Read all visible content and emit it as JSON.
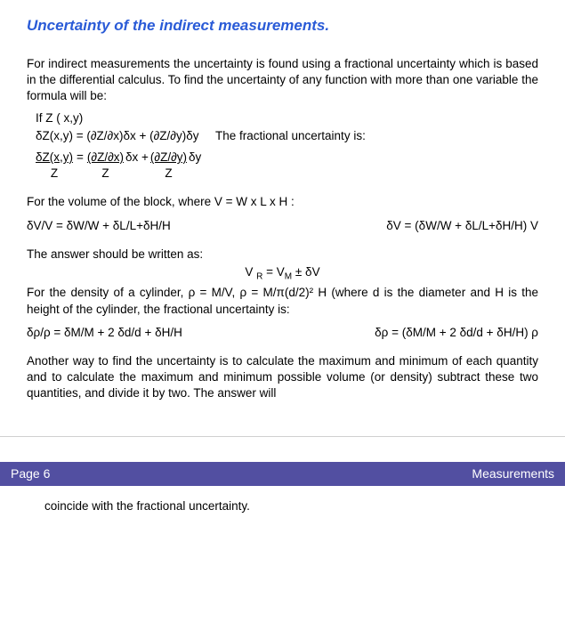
{
  "title_color": "#2a5bd7",
  "footer_bg": "#524fa1",
  "title": "Uncertainty of the indirect measurements.",
  "intro": "For indirect measurements the uncertainty is found using a fractional uncertainty which is based in the differential calculus. To find the uncertainty of any function with more than one variable the formula will be:",
  "if_line": "If Z ( x,y)",
  "dz_line_left": "δZ(x,y) = (∂Z/∂x)δx + (∂Z/∂y)δy",
  "dz_line_right": "The fractional uncertainty is:",
  "frac": {
    "t1_num": "δZ(x,y)",
    "t1_den": "Z",
    "eq": "=",
    "t2_num": "(∂Z/∂x)",
    "plus": "δx +",
    "t3_num": "(∂Z/∂y)",
    "tail": "δy",
    "t2_den": "Z",
    "t3_den": "Z"
  },
  "vol_intro": "For the volume of the block, where V = W x L x H :",
  "vol_left": "δV/V = δW/W + δL/L+δH/H",
  "vol_right": "δV = (δW/W + δL/L+δH/H) V",
  "answer_intro": "The answer should be written as:",
  "vr_line": "V R = VM ± δV",
  "density_para": "For the density of a cylinder, ρ = M/V,   ρ = M/π(d/2)² H (where d is the diameter and H is the height of the cylinder, the fractional uncertainty is:",
  "rho_left": "δρ/ρ = δM/M + 2 δd/d + δH/H",
  "rho_right": "δρ = (δM/M + 2 δd/d + δH/H) ρ",
  "another_way": "Another way to find the uncertainty is to calculate the maximum and minimum of each quantity and to calculate the maximum and minimum possible volume (or density) subtract these two quantities, and divide it by two. The answer will",
  "footer_left": "Page 6",
  "footer_right": "Measurements",
  "tail": "coincide with the fractional uncertainty."
}
